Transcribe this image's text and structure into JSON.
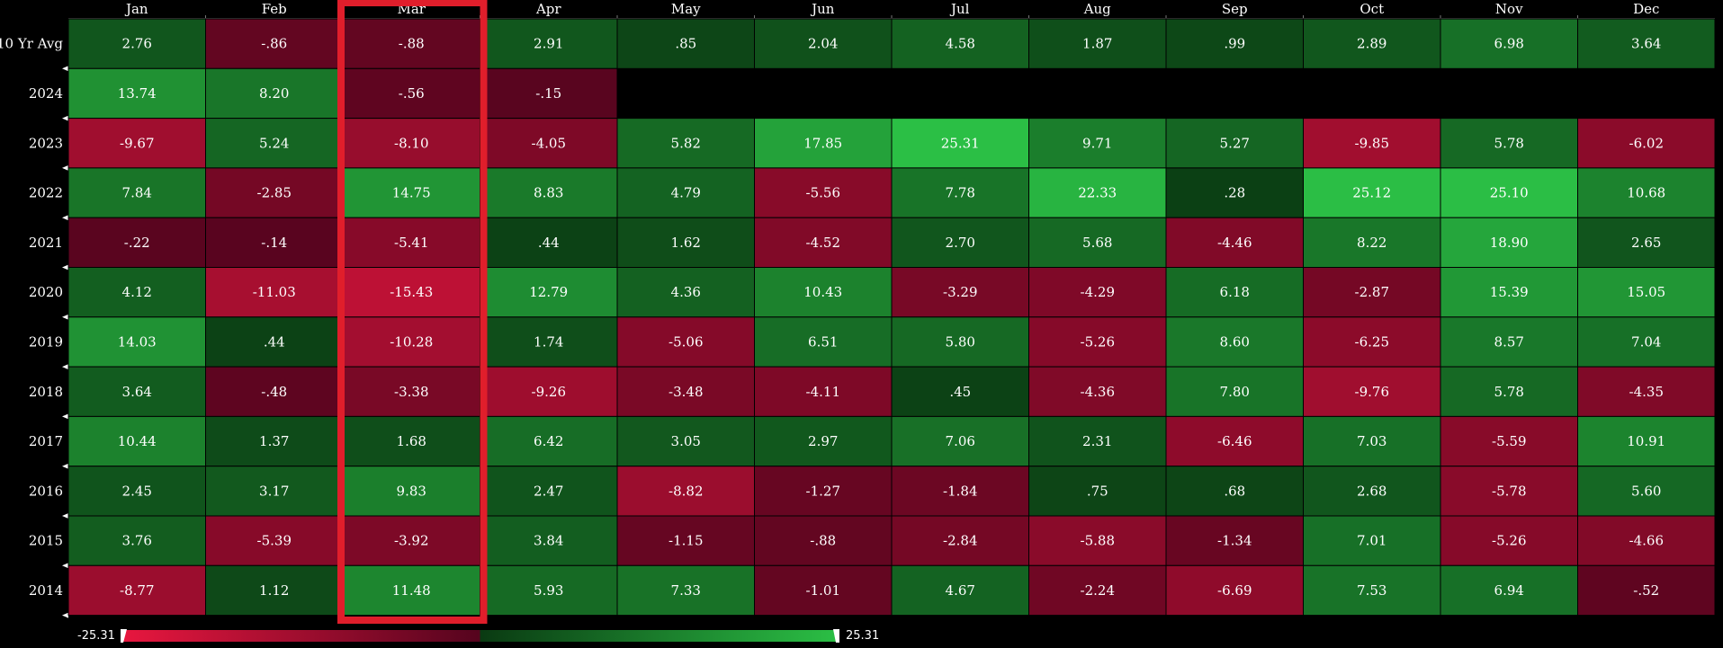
{
  "chart_data": {
    "type": "heatmap",
    "columns": [
      "Jan",
      "Feb",
      "Mar",
      "Apr",
      "May",
      "Jun",
      "Jul",
      "Aug",
      "Sep",
      "Oct",
      "Nov",
      "Dec"
    ],
    "rows": [
      {
        "label": "10 Yr Avg",
        "values": [
          "2.76",
          "-.86",
          "-.88",
          "2.91",
          ".85",
          "2.04",
          "4.58",
          "1.87",
          ".99",
          "2.89",
          "6.98",
          "3.64"
        ]
      },
      {
        "label": "2024",
        "values": [
          "13.74",
          "8.20",
          "-.56",
          "-.15",
          null,
          null,
          null,
          null,
          null,
          null,
          null,
          null
        ]
      },
      {
        "label": "2023",
        "values": [
          "-9.67",
          "5.24",
          "-8.10",
          "-4.05",
          "5.82",
          "17.85",
          "25.31",
          "9.71",
          "5.27",
          "-9.85",
          "5.78",
          "-6.02"
        ]
      },
      {
        "label": "2022",
        "values": [
          "7.84",
          "-2.85",
          "14.75",
          "8.83",
          "4.79",
          "-5.56",
          "7.78",
          "22.33",
          ".28",
          "25.12",
          "25.10",
          "10.68"
        ]
      },
      {
        "label": "2021",
        "values": [
          "-.22",
          "-.14",
          "-5.41",
          ".44",
          "1.62",
          "-4.52",
          "2.70",
          "5.68",
          "-4.46",
          "8.22",
          "18.90",
          "2.65"
        ]
      },
      {
        "label": "2020",
        "values": [
          "4.12",
          "-11.03",
          "-15.43",
          "12.79",
          "4.36",
          "10.43",
          "-3.29",
          "-4.29",
          "6.18",
          "-2.87",
          "15.39",
          "15.05"
        ]
      },
      {
        "label": "2019",
        "values": [
          "14.03",
          ".44",
          "-10.28",
          "1.74",
          "-5.06",
          "6.51",
          "5.80",
          "-5.26",
          "8.60",
          "-6.25",
          "8.57",
          "7.04"
        ]
      },
      {
        "label": "2018",
        "values": [
          "3.64",
          "-.48",
          "-3.38",
          "-9.26",
          "-3.48",
          "-4.11",
          ".45",
          "-4.36",
          "7.80",
          "-9.76",
          "5.78",
          "-4.35"
        ]
      },
      {
        "label": "2017",
        "values": [
          "10.44",
          "1.37",
          "1.68",
          "6.42",
          "3.05",
          "2.97",
          "7.06",
          "2.31",
          "-6.46",
          "7.03",
          "-5.59",
          "10.91"
        ]
      },
      {
        "label": "2016",
        "values": [
          "2.45",
          "3.17",
          "9.83",
          "2.47",
          "-8.82",
          "-1.27",
          "-1.84",
          ".75",
          ".68",
          "2.68",
          "-5.78",
          "5.60"
        ]
      },
      {
        "label": "2015",
        "values": [
          "3.76",
          "-5.39",
          "-3.92",
          "3.84",
          "-1.15",
          "-.88",
          "-2.84",
          "-5.88",
          "-1.34",
          "7.01",
          "-5.26",
          "-4.66"
        ]
      },
      {
        "label": "2014",
        "values": [
          "-8.77",
          "1.12",
          "11.48",
          "5.93",
          "7.33",
          "-1.01",
          "4.67",
          "-2.24",
          "-6.69",
          "7.53",
          "6.94",
          "-.52"
        ]
      }
    ],
    "scale": {
      "min_label": "-25.31",
      "max_label": "25.31",
      "min": -25.31,
      "max": 25.31
    },
    "highlight_column": "Mar",
    "colors": {
      "negative": "#e8173f",
      "negative_dark": "#55041e",
      "positive_dark": "#0a3a12",
      "positive": "#2bbf45",
      "highlight": "#e01e2b",
      "background": "#000000"
    }
  }
}
